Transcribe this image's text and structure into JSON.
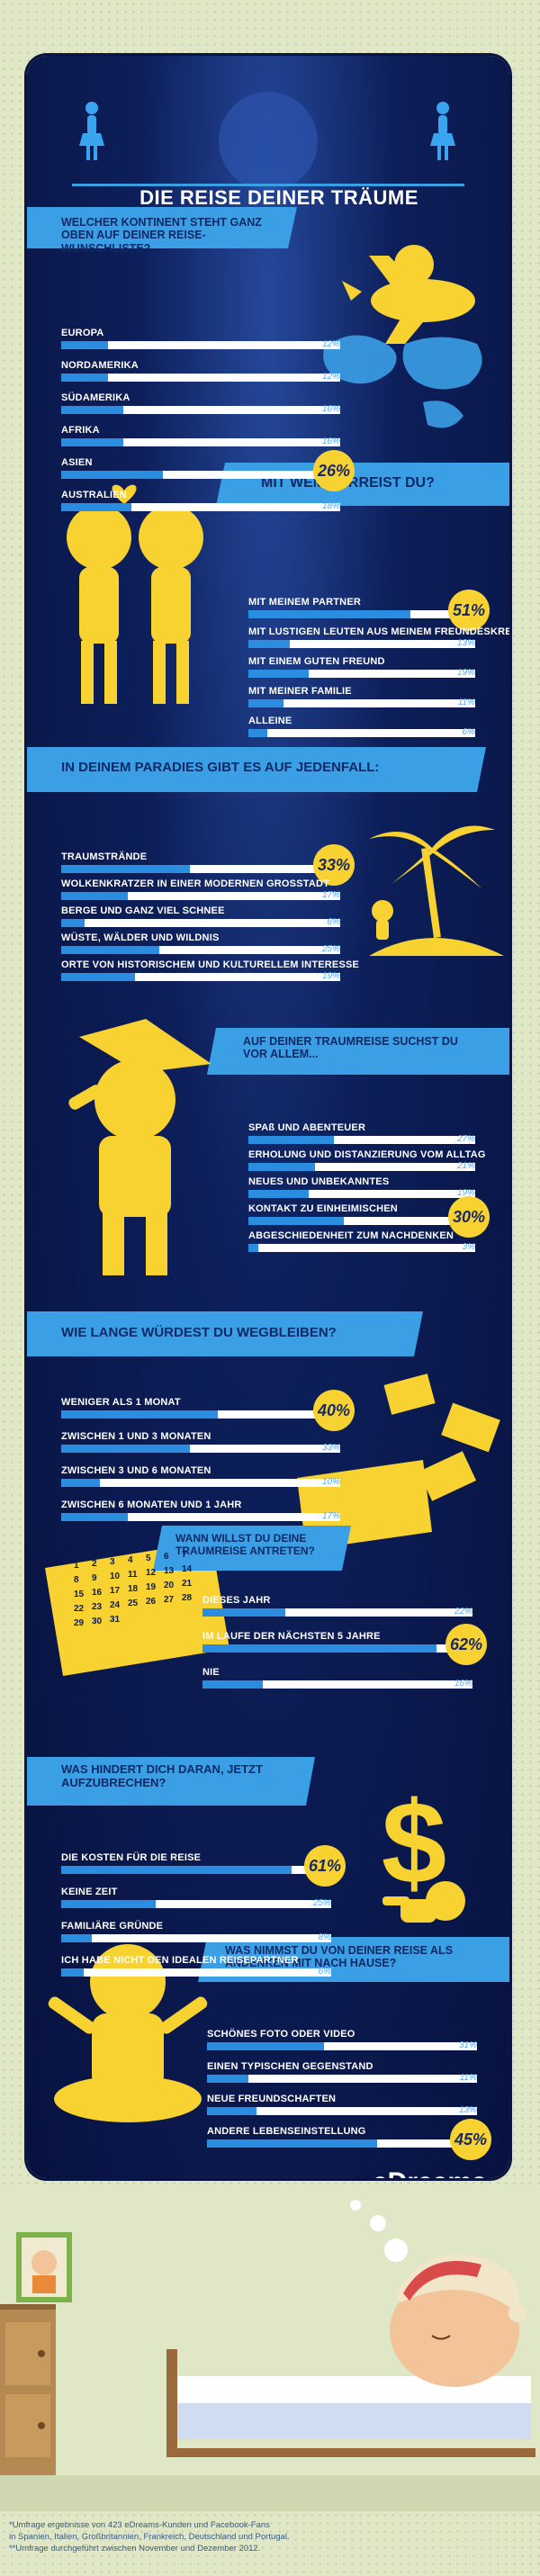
{
  "title": "DIE REISE DEINER TRÄUME",
  "brand": "eDreams",
  "colors": {
    "navy": "#0b1a50",
    "accent_blue": "#2a8de0",
    "ribbon": "#3b9fe6",
    "yellow": "#f7d230",
    "text_pct": "#5aa8f0"
  },
  "footer": {
    "line1": "*Umfrage ergebnisse von 423 eDreams-Kunden und Facebook-Fans",
    "line2": "in Spanien, Italien, Großbritannien, Frankreich, Deutschland und Portugal.",
    "line3": "**Umfrage durchgeführt zwischen November und Dezember 2012."
  },
  "chart_data": [
    {
      "type": "bar",
      "title": "WELCHER KONTINENT STEHT GANZ OBEN AUF DEINER REISE-WUNSCHLISTE?",
      "categories": [
        "EUROPA",
        "NORDAMERIKA",
        "SÜDAMERIKA",
        "AFRIKA",
        "ASIEN",
        "AUSTRALIEN"
      ],
      "values": [
        12,
        12,
        16,
        16,
        26,
        18
      ],
      "labels": [
        "12%",
        "12%",
        "16%",
        "16%",
        "26%",
        "18%"
      ],
      "highlight": 4
    },
    {
      "type": "bar",
      "title": "MIT WEM VERREIST DU?",
      "categories": [
        "MIT MEINEM PARTNER",
        "MIT LUSTIGEN LEUTEN AUS MEINEM FREUNDESKREIS",
        "MIT EINEM GUTEN FREUND",
        "MIT MEINER FAMILIE",
        "ALLEINE"
      ],
      "values": [
        51,
        13,
        19,
        11,
        6
      ],
      "labels": [
        "51%",
        "13%",
        "19%",
        "11%",
        "6%"
      ],
      "highlight": 0
    },
    {
      "type": "bar",
      "title": "IN DEINEM PARADIES GIBT ES AUF JEDENFALL:",
      "categories": [
        "TRAUMSTRÄNDE",
        "WOLKENKRATZER IN EINER MODERNEN GROSSTADT",
        "BERGE UND GANZ VIEL SCHNEE",
        "WÜSTE, WÄLDER UND WILDNIS",
        "ORTE VON HISTORISCHEM UND KULTURELLEM INTERESSE"
      ],
      "values": [
        33,
        17,
        6,
        25,
        19
      ],
      "labels": [
        "33%",
        "17%",
        "6%",
        "25%",
        "19%"
      ],
      "highlight": 0
    },
    {
      "type": "bar",
      "title": "AUF DEINER TRAUMREISE SUCHST DU VOR ALLEM...",
      "categories": [
        "SPAß UND ABENTEUER",
        "ERHOLUNG UND DISTANZIERUNG VOM ALLTAG",
        "NEUES UND UNBEKANNTES",
        "KONTAKT ZU EINHEIMISCHEN",
        "ABGESCHIEDENHEIT ZUM NACHDENKEN"
      ],
      "values": [
        27,
        21,
        19,
        30,
        3
      ],
      "labels": [
        "27%",
        "21%",
        "19%",
        "30%",
        "3%"
      ],
      "highlight": 3
    },
    {
      "type": "bar",
      "title": "WIE LANGE WÜRDEST DU WEGBLEIBEN?",
      "categories": [
        "WENIGER ALS 1 MONAT",
        "ZWISCHEN 1 UND 3 MONATEN",
        "ZWISCHEN 3 UND 6 MONATEN",
        "ZWISCHEN 6 MONATEN UND 1 JAHR"
      ],
      "values": [
        40,
        33,
        10,
        17
      ],
      "labels": [
        "40%",
        "33%",
        "10%",
        "17%"
      ],
      "highlight": 0
    },
    {
      "type": "bar",
      "title": "WANN WILLST DU DEINE TRAUMREISE ANTRETEN?",
      "categories": [
        "DIESES JAHR",
        "IM LAUFE DER NÄCHSTEN 5 JAHRE",
        "NIE"
      ],
      "values": [
        22,
        62,
        16
      ],
      "labels": [
        "22%",
        "62%",
        "16%"
      ],
      "highlight": 1
    },
    {
      "type": "bar",
      "title": "WAS HINDERT DICH DARAN, JETZT AUFZUBRECHEN?",
      "categories": [
        "DIE KOSTEN FÜR DIE REISE",
        "KEINE ZEIT",
        "FAMILIÄRE GRÜNDE",
        "ICH HABE NICHT DEN IDEALEN REISEPARTNER"
      ],
      "values": [
        61,
        25,
        8,
        6
      ],
      "labels": [
        "61%",
        "25%",
        "8%",
        "6%"
      ],
      "highlight": 0
    },
    {
      "type": "bar",
      "title": "WAS NIMMST DU VON DEINER REISE ALS ANDENKEN MIT NACH HAUSE?",
      "categories": [
        "SCHÖNES FOTO ODER VIDEO",
        "EINEN TYPISCHEN GEGENSTAND",
        "NEUE FREUNDSCHAFTEN",
        "ANDERE LEBENSEINSTELLUNG"
      ],
      "values": [
        31,
        11,
        13,
        45
      ],
      "labels": [
        "31%",
        "11%",
        "13%",
        "45%"
      ],
      "highlight": 3
    }
  ],
  "calendar_numbers": [
    "1",
    "2",
    "3",
    "4",
    "5",
    "6",
    "7",
    "8",
    "9",
    "10",
    "11",
    "12",
    "13",
    "14",
    "15",
    "16",
    "17",
    "18",
    "19",
    "20",
    "21",
    "22",
    "23",
    "24",
    "25",
    "26",
    "27",
    "28",
    "29",
    "30",
    "31"
  ]
}
